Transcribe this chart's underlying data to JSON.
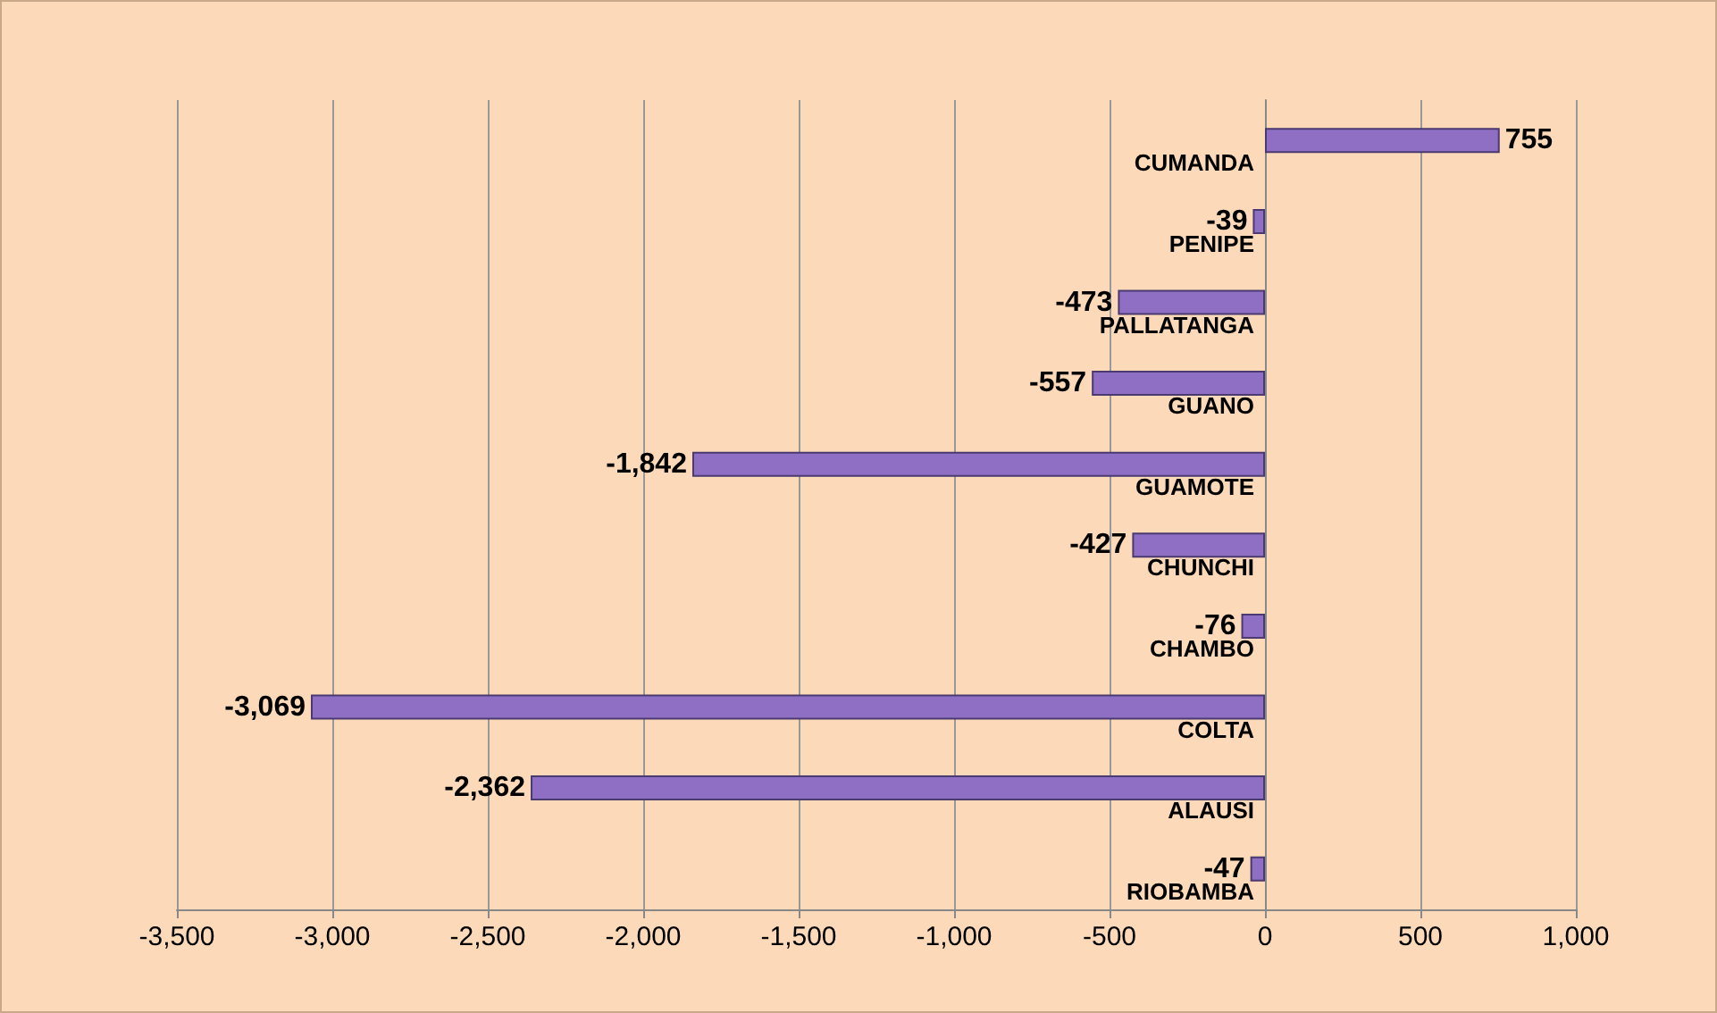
{
  "chart_data": {
    "type": "bar",
    "orientation": "horizontal",
    "categories": [
      "CUMANDA",
      "PENIPE",
      "PALLATANGA",
      "GUANO",
      "GUAMOTE",
      "CHUNCHI",
      "CHAMBO",
      "COLTA",
      "ALAUSI",
      "RIOBAMBA"
    ],
    "values": [
      755,
      -39,
      -473,
      -557,
      -1842,
      -427,
      -76,
      -3069,
      -2362,
      -47
    ],
    "value_labels": [
      "755",
      "-39",
      "-473",
      "-557",
      "-1,842",
      "-427",
      "-76",
      "-3,069",
      "-2,362",
      "-47"
    ],
    "color": "#8e6fc4",
    "xlim": [
      -3500,
      1000
    ],
    "xticks": [
      {
        "value": -3500,
        "label": "-3,500"
      },
      {
        "value": -3000,
        "label": "-3,000"
      },
      {
        "value": -2500,
        "label": "-2,500"
      },
      {
        "value": -2000,
        "label": "-2,000"
      },
      {
        "value": -1500,
        "label": "-1,500"
      },
      {
        "value": -1000,
        "label": "-1,000"
      },
      {
        "value": -500,
        "label": "-500"
      },
      0,
      500,
      {
        "value": 1000,
        "label": "1,000"
      }
    ],
    "grid": "x"
  }
}
